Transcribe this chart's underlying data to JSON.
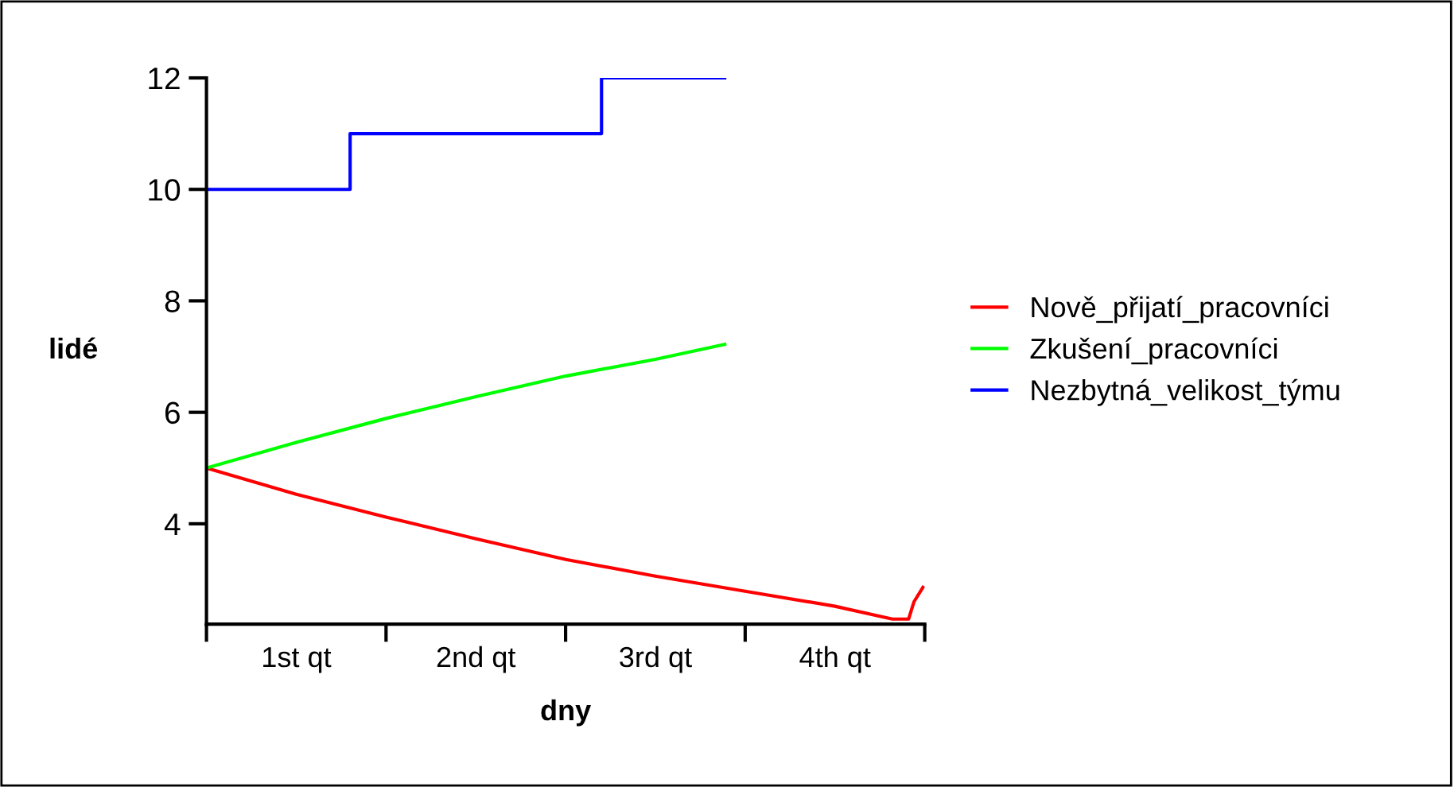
{
  "chart_data": {
    "type": "line",
    "xlabel": "dny",
    "ylabel": "lidé",
    "xlim": [
      0,
      4
    ],
    "ylim": [
      2.2,
      12
    ],
    "xticks": [
      {
        "value": 0,
        "label": null
      },
      {
        "value": 0.5,
        "label": "1st qt"
      },
      {
        "value": 1,
        "label": null
      },
      {
        "value": 1.5,
        "label": "2nd qt"
      },
      {
        "value": 2,
        "label": null
      },
      {
        "value": 2.5,
        "label": "3rd qt"
      },
      {
        "value": 3,
        "label": null
      },
      {
        "value": 3.5,
        "label": "4th qt"
      },
      {
        "value": 4,
        "label": null
      }
    ],
    "yticks": [
      4,
      6,
      8,
      10,
      12
    ],
    "grid": false,
    "legend": "right",
    "series": [
      {
        "name": "Nově_přijatí_pracovníci",
        "color": "#ff0000",
        "x": [
          0,
          0.5,
          1,
          1.5,
          2,
          2.5,
          3,
          3.5,
          3.82,
          3.91,
          3.94,
          3.99
        ],
        "values": [
          5.0,
          4.53,
          4.12,
          3.73,
          3.36,
          3.06,
          2.79,
          2.52,
          2.29,
          2.29,
          2.6,
          2.86
        ]
      },
      {
        "name": "Zkušení_pracovníci",
        "color": "#00ff00",
        "x": [
          0,
          0.5,
          1,
          1.5,
          2,
          2.5,
          2.886
        ],
        "values": [
          5.0,
          5.46,
          5.89,
          6.28,
          6.65,
          6.95,
          7.22
        ]
      },
      {
        "name": "Nezbytná_velikost_týmu",
        "color": "#0000ff",
        "type": "step",
        "x": [
          0,
          0.8,
          2.2,
          2.886
        ],
        "values": [
          10,
          11,
          12,
          12
        ]
      }
    ]
  }
}
